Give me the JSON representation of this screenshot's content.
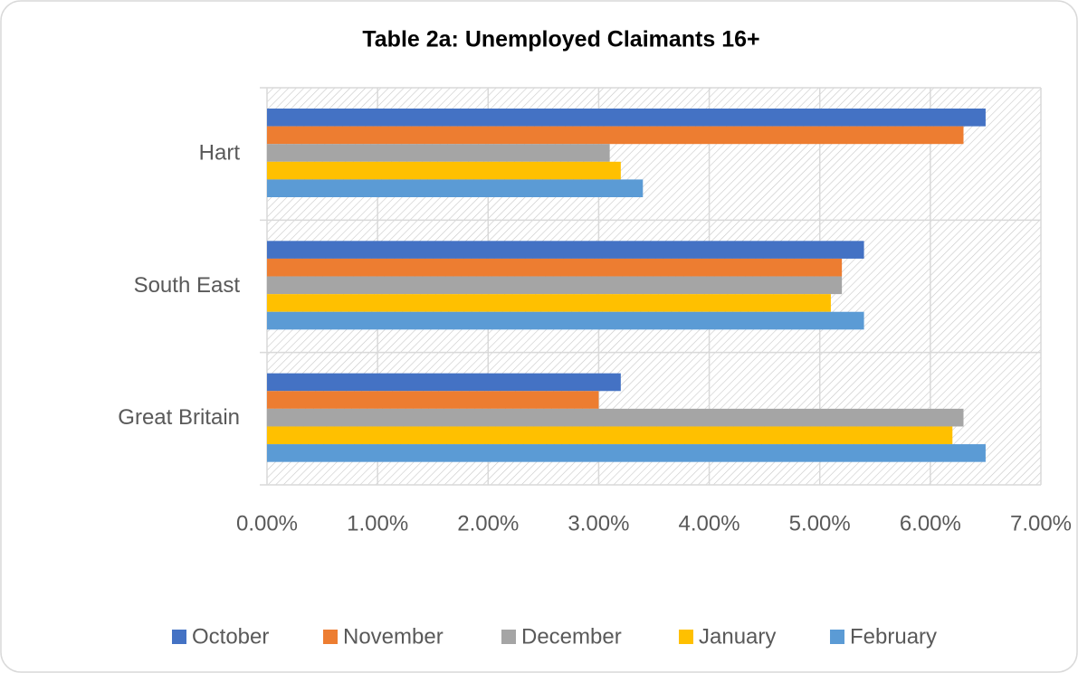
{
  "chart_data": {
    "type": "bar",
    "orientation": "horizontal",
    "title": "Table 2a: Unemployed Claimants 16+",
    "categories": [
      "Hart",
      "South East",
      "Great Britain"
    ],
    "series": [
      {
        "name": "October",
        "color": "#4472c4",
        "values": [
          6.5,
          5.4,
          3.2
        ]
      },
      {
        "name": "November",
        "color": "#ed7d31",
        "values": [
          6.3,
          5.2,
          3.0
        ]
      },
      {
        "name": "December",
        "color": "#a5a5a5",
        "values": [
          3.1,
          5.2,
          6.3
        ]
      },
      {
        "name": "January",
        "color": "#ffc000",
        "values": [
          3.2,
          5.1,
          6.2
        ]
      },
      {
        "name": "February",
        "color": "#5b9bd5",
        "values": [
          3.4,
          5.4,
          6.5
        ]
      }
    ],
    "xlim": [
      0,
      7
    ],
    "xticks": [
      {
        "value": 0,
        "label": "0.00%"
      },
      {
        "value": 1,
        "label": "1.00%"
      },
      {
        "value": 2,
        "label": "2.00%"
      },
      {
        "value": 3,
        "label": "3.00%"
      },
      {
        "value": 4,
        "label": "4.00%"
      },
      {
        "value": 5,
        "label": "5.00%"
      },
      {
        "value": 6,
        "label": "6.00%"
      },
      {
        "value": 7,
        "label": "7.00%"
      }
    ],
    "grid": true,
    "legend": "bottom"
  }
}
